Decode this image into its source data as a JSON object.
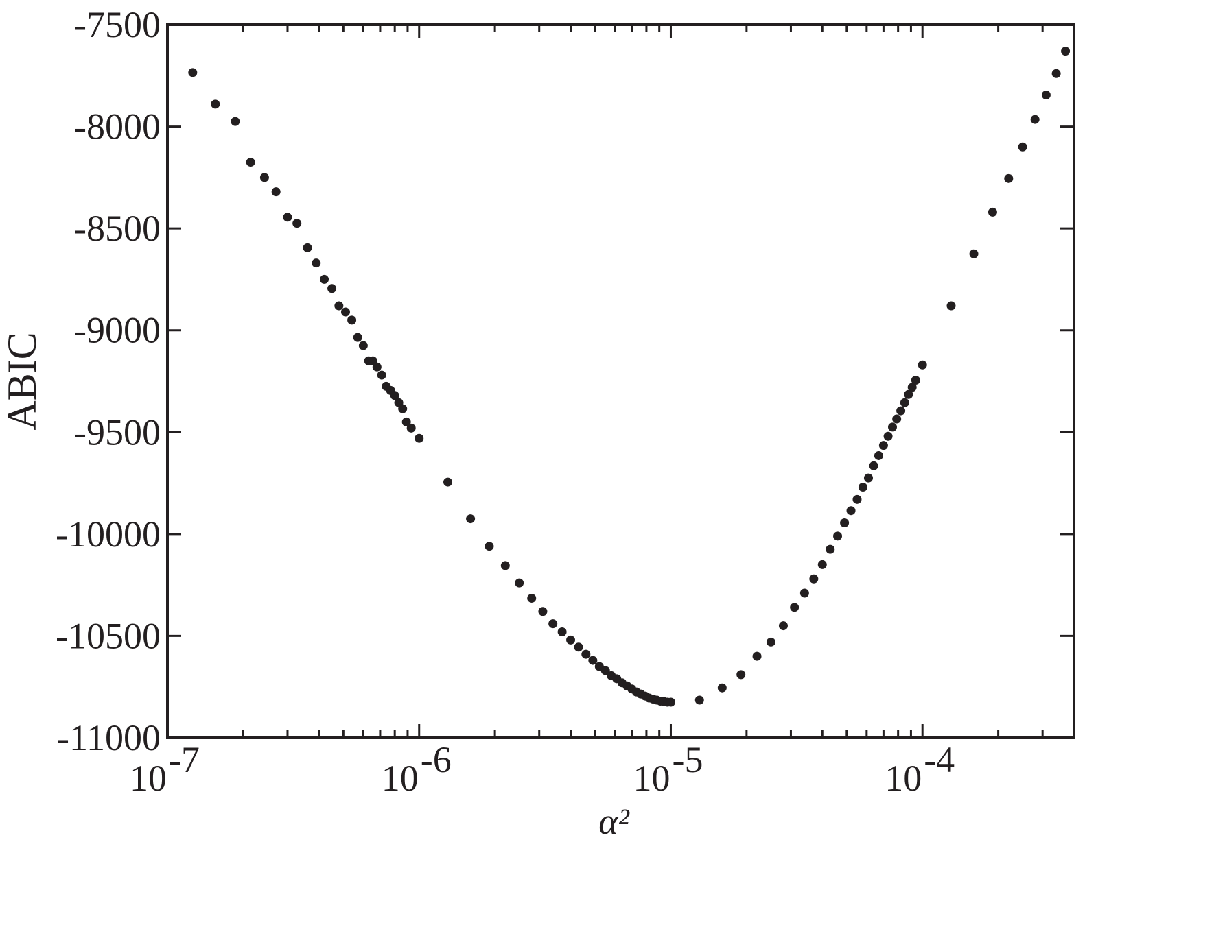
{
  "chart_data": {
    "type": "scatter",
    "title": "",
    "xlabel": "α²",
    "ylabel": "ABIC",
    "x_scale": "log",
    "xlim": [
      1e-07,
      0.0004
    ],
    "ylim": [
      -11000,
      -7500
    ],
    "grid": false,
    "legend": "none",
    "marker_color": "#231f20",
    "axis_color": "#231f20",
    "x_ticks": [
      {
        "value": 1e-07,
        "base": "10",
        "exp": "-7"
      },
      {
        "value": 1e-06,
        "base": "10",
        "exp": "-6"
      },
      {
        "value": 1e-05,
        "base": "10",
        "exp": "-5"
      },
      {
        "value": 0.0001,
        "base": "10",
        "exp": "-4"
      }
    ],
    "y_ticks": [
      -7500,
      -8000,
      -8500,
      -9000,
      -9500,
      -10000,
      -10500,
      -11000
    ],
    "y_tick_labels": [
      "-7500",
      "-8000",
      "-8500",
      "-9000",
      "-9500",
      "-10000",
      "-10500",
      "-11000"
    ],
    "series": [
      {
        "points": [
          [
            1.26e-07,
            -7735
          ],
          [
            1.55e-07,
            -7890
          ],
          [
            1.86e-07,
            -7975
          ],
          [
            2.14e-07,
            -8175
          ],
          [
            2.43e-07,
            -8250
          ],
          [
            2.7e-07,
            -8320
          ],
          [
            3e-07,
            -8445
          ],
          [
            3.27e-07,
            -8475
          ],
          [
            3.6e-07,
            -8595
          ],
          [
            3.9e-07,
            -8670
          ],
          [
            4.2e-07,
            -8750
          ],
          [
            4.5e-07,
            -8795
          ],
          [
            4.8e-07,
            -8880
          ],
          [
            5.1e-07,
            -8910
          ],
          [
            5.4e-07,
            -8950
          ],
          [
            5.7e-07,
            -9035
          ],
          [
            6e-07,
            -9075
          ],
          [
            6.3e-07,
            -9150
          ],
          [
            6.55e-07,
            -9150
          ],
          [
            6.8e-07,
            -9180
          ],
          [
            7.1e-07,
            -9220
          ],
          [
            7.4e-07,
            -9275
          ],
          [
            7.7e-07,
            -9295
          ],
          [
            8e-07,
            -9320
          ],
          [
            8.3e-07,
            -9355
          ],
          [
            8.6e-07,
            -9385
          ],
          [
            8.9e-07,
            -9450
          ],
          [
            9.3e-07,
            -9480
          ],
          [
            1e-06,
            -9530
          ],
          [
            1.3e-06,
            -9745
          ],
          [
            1.6e-06,
            -9925
          ],
          [
            1.9e-06,
            -10060
          ],
          [
            2.2e-06,
            -10155
          ],
          [
            2.5e-06,
            -10240
          ],
          [
            2.8e-06,
            -10315
          ],
          [
            3.1e-06,
            -10380
          ],
          [
            3.4e-06,
            -10440
          ],
          [
            3.7e-06,
            -10480
          ],
          [
            4e-06,
            -10520
          ],
          [
            4.3e-06,
            -10555
          ],
          [
            4.6e-06,
            -10590
          ],
          [
            4.9e-06,
            -10620
          ],
          [
            5.2e-06,
            -10650
          ],
          [
            5.5e-06,
            -10670
          ],
          [
            5.8e-06,
            -10695
          ],
          [
            6.1e-06,
            -10710
          ],
          [
            6.4e-06,
            -10730
          ],
          [
            6.7e-06,
            -10745
          ],
          [
            7e-06,
            -10760
          ],
          [
            7.3e-06,
            -10775
          ],
          [
            7.6e-06,
            -10785
          ],
          [
            7.9e-06,
            -10795
          ],
          [
            8.2e-06,
            -10805
          ],
          [
            8.5e-06,
            -10810
          ],
          [
            8.8e-06,
            -10815
          ],
          [
            9.1e-06,
            -10820
          ],
          [
            9.4e-06,
            -10822
          ],
          [
            9.7e-06,
            -10825
          ],
          [
            1e-05,
            -10825
          ],
          [
            1.3e-05,
            -10815
          ],
          [
            1.6e-05,
            -10755
          ],
          [
            1.9e-05,
            -10690
          ],
          [
            2.2e-05,
            -10600
          ],
          [
            2.5e-05,
            -10530
          ],
          [
            2.8e-05,
            -10450
          ],
          [
            3.1e-05,
            -10360
          ],
          [
            3.4e-05,
            -10290
          ],
          [
            3.7e-05,
            -10220
          ],
          [
            4e-05,
            -10150
          ],
          [
            4.3e-05,
            -10075
          ],
          [
            4.6e-05,
            -10010
          ],
          [
            4.9e-05,
            -9945
          ],
          [
            5.2e-05,
            -9885
          ],
          [
            5.5e-05,
            -9830
          ],
          [
            5.8e-05,
            -9770
          ],
          [
            6.1e-05,
            -9725
          ],
          [
            6.4e-05,
            -9665
          ],
          [
            6.7e-05,
            -9615
          ],
          [
            7e-05,
            -9565
          ],
          [
            7.3e-05,
            -9520
          ],
          [
            7.6e-05,
            -9475
          ],
          [
            7.9e-05,
            -9435
          ],
          [
            8.2e-05,
            -9395
          ],
          [
            8.5e-05,
            -9355
          ],
          [
            8.8e-05,
            -9315
          ],
          [
            9.1e-05,
            -9280
          ],
          [
            9.4e-05,
            -9245
          ],
          [
            0.0001,
            -9170
          ],
          [
            0.00013,
            -8880
          ],
          [
            0.00016,
            -8625
          ],
          [
            0.00019,
            -8420
          ],
          [
            0.00022,
            -8255
          ],
          [
            0.00025,
            -8100
          ],
          [
            0.00028,
            -7965
          ],
          [
            0.00031,
            -7845
          ],
          [
            0.00034,
            -7740
          ],
          [
            0.00037,
            -7630
          ]
        ]
      }
    ]
  }
}
